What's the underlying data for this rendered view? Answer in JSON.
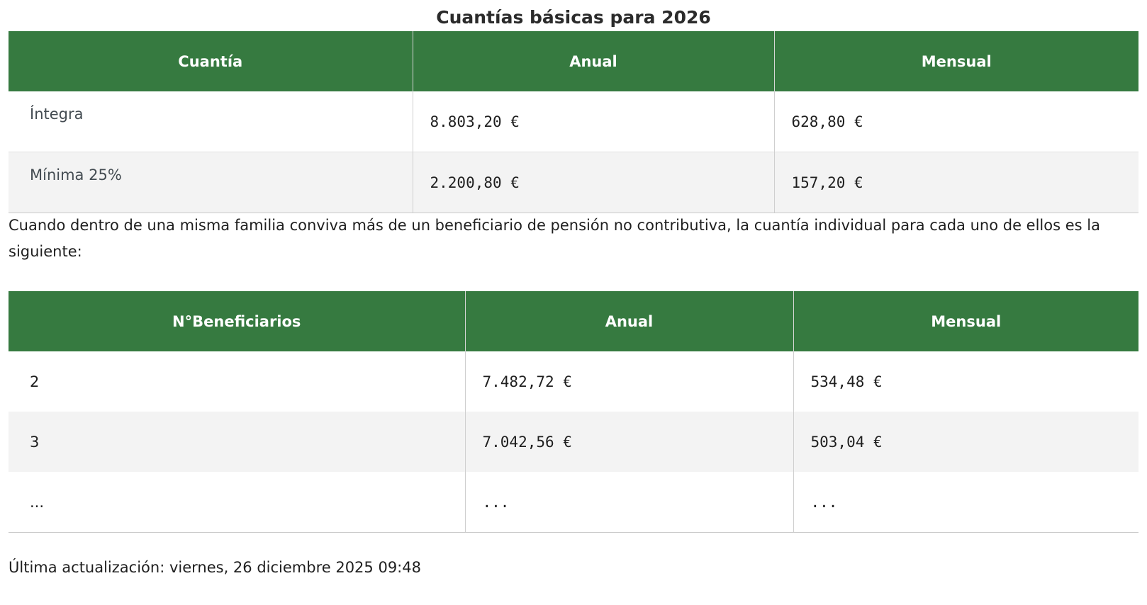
{
  "title": "Cuantías básicas para 2026",
  "table1": {
    "headers": [
      "Cuantía",
      "Anual",
      "Mensual"
    ],
    "rows": [
      {
        "label": "Íntegra",
        "annual": "8.803,20 €",
        "monthly": "628,80 €"
      },
      {
        "label": "Mínima 25%",
        "annual": "2.200,80 €",
        "monthly": "157,20 €"
      }
    ]
  },
  "note": "Cuando dentro de una misma familia conviva más de un beneficiario de pensión no contributiva, la cuantía individual para cada uno de ellos es la siguiente:",
  "table2": {
    "headers": [
      "N°Beneficiarios",
      "Anual",
      "Mensual"
    ],
    "rows": [
      {
        "beneficiaries": "2",
        "annual": "7.482,72 €",
        "monthly": "534,48 €"
      },
      {
        "beneficiaries": "3",
        "annual": "7.042,56 €",
        "monthly": "503,04 €"
      },
      {
        "beneficiaries": "...",
        "annual": "...",
        "monthly": "..."
      }
    ]
  },
  "footer": {
    "last_updated": "Última actualización: viernes, 26 diciembre 2025 09:48"
  }
}
